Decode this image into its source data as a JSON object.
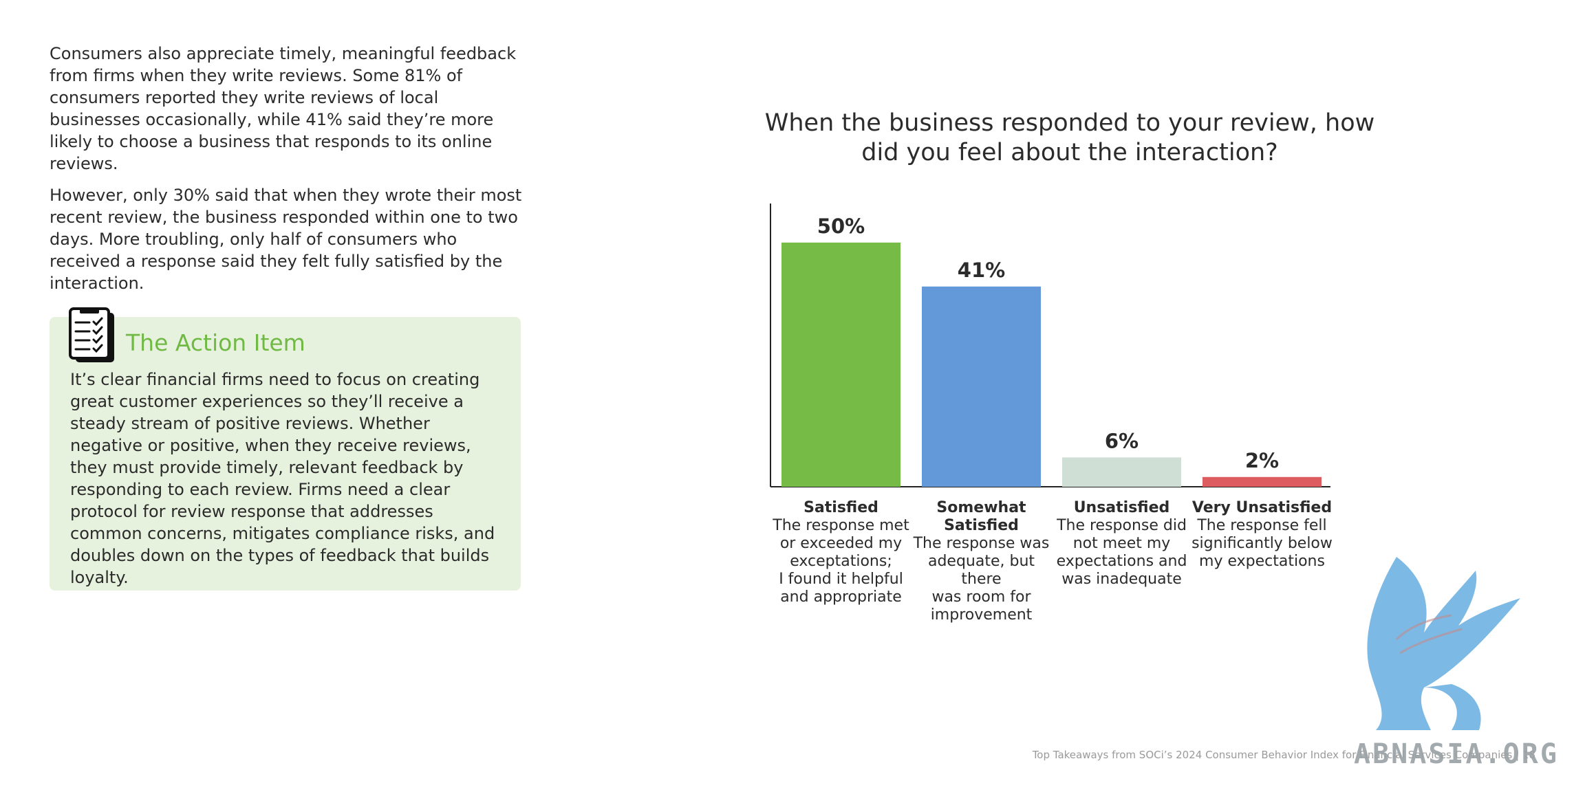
{
  "intro": {
    "paragraphs": [
      "Consumers also appreciate timely, meaningful feedback from firms when they write reviews. Some 81% of consumers reported they write reviews of local businesses occasionally, while 41% said they’re more likely to choose a business that responds to its online reviews.",
      "However, only 30% said that when they wrote their most recent review, the business responded within one to two days. More troubling, only half of consumers who received a response said they felt fully satisfied by the interaction."
    ]
  },
  "action_item": {
    "icon": "clipboard-checklist-icon",
    "title": "The Action Item",
    "body": "It’s clear financial firms need to focus on creating great customer experiences so they’ll receive a steady stream of positive reviews. Whether negative or positive, when they receive reviews, they must provide timely, relevant feedback by responding to each review. Firms need a clear protocol for review response that addresses common concerns, mitigates compliance risks, and doubles down on the types of feedback that builds loyalty.",
    "background_color": "#e7f2de",
    "title_color": "#71b945"
  },
  "chart_data": {
    "type": "bar",
    "title": "When the business responded to your review, how did you feel about the interaction?",
    "categories": [
      "Satisfied",
      "Somewhat Satisfied",
      "Unsatisfied",
      "Very Unsatisfied"
    ],
    "descriptions": [
      "The response met\nor exceeded my\nexceptations;\nI found it helpful\nand appropriate",
      "The response was\nadequate, but there\nwas room for\nimprovement",
      "The response did\nnot meet my\nexpectations and\nwas inadequate",
      "The response fell\nsignificantly below\nmy expectations"
    ],
    "values": [
      50,
      41,
      6,
      2
    ],
    "value_labels": [
      "50%",
      "41%",
      "6%",
      "2%"
    ],
    "colors": [
      "#76bb46",
      "#6399d8",
      "#cfdfd5",
      "#dd5c60"
    ],
    "ylim": [
      0,
      58
    ],
    "grid": false,
    "legend": "none"
  },
  "footer": {
    "text": "Top Takeaways from SOCi’s 2024 Consumer Behavior Index for Financial Services Companies | 18"
  },
  "watermark": {
    "text": "ABNASIA.ORG",
    "icon": "griffin-logo-icon",
    "color": "#7cb9e4"
  }
}
